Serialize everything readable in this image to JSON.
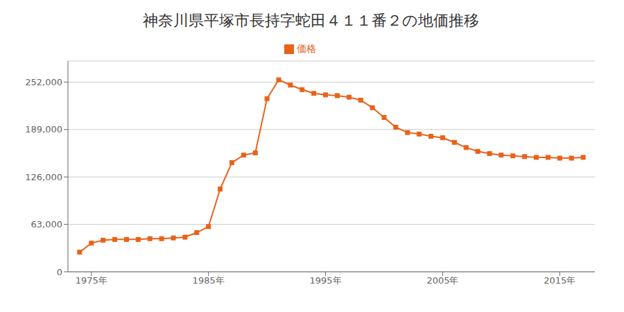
{
  "chart_data": {
    "type": "line",
    "title": "神奈川県平塚市長持字蛇田４１１番２の地価推移",
    "x": [
      1974,
      1975,
      1976,
      1977,
      1978,
      1979,
      1980,
      1981,
      1982,
      1983,
      1984,
      1985,
      1986,
      1987,
      1988,
      1989,
      1990,
      1991,
      1992,
      1993,
      1994,
      1995,
      1996,
      1997,
      1998,
      1999,
      2000,
      2001,
      2002,
      2003,
      2004,
      2005,
      2006,
      2007,
      2008,
      2009,
      2010,
      2011,
      2012,
      2013,
      2014,
      2015,
      2016,
      2017
    ],
    "series": [
      {
        "name": "価格",
        "color": "#e8621a",
        "marker": "square",
        "values": [
          26000,
          38000,
          42000,
          43000,
          43000,
          43000,
          44000,
          44000,
          45000,
          46000,
          52000,
          60000,
          110000,
          145000,
          155000,
          158000,
          230000,
          255000,
          248000,
          242000,
          237000,
          235000,
          234000,
          232000,
          228000,
          218000,
          205000,
          192000,
          185000,
          183000,
          180000,
          178000,
          172000,
          165000,
          160000,
          157000,
          155000,
          154000,
          153000,
          152000,
          152000,
          151000,
          151000,
          152000
        ]
      }
    ],
    "xlim": [
      1973,
      2018
    ],
    "xticks": [
      {
        "value": 1975,
        "label": "1975年"
      },
      {
        "value": 1985,
        "label": "1985年"
      },
      {
        "value": 1995,
        "label": "1995年"
      },
      {
        "value": 2005,
        "label": "2005年"
      },
      {
        "value": 2015,
        "label": "2015年"
      }
    ],
    "ylim": [
      0,
      280000
    ],
    "yticks": [
      0,
      {
        "value": 63000,
        "label": "63,000"
      },
      {
        "value": 126000,
        "label": "126,000"
      },
      {
        "value": 189000,
        "label": "189,000"
      },
      {
        "value": 252000,
        "label": "252,000"
      }
    ],
    "grid": true,
    "legend": "top"
  }
}
